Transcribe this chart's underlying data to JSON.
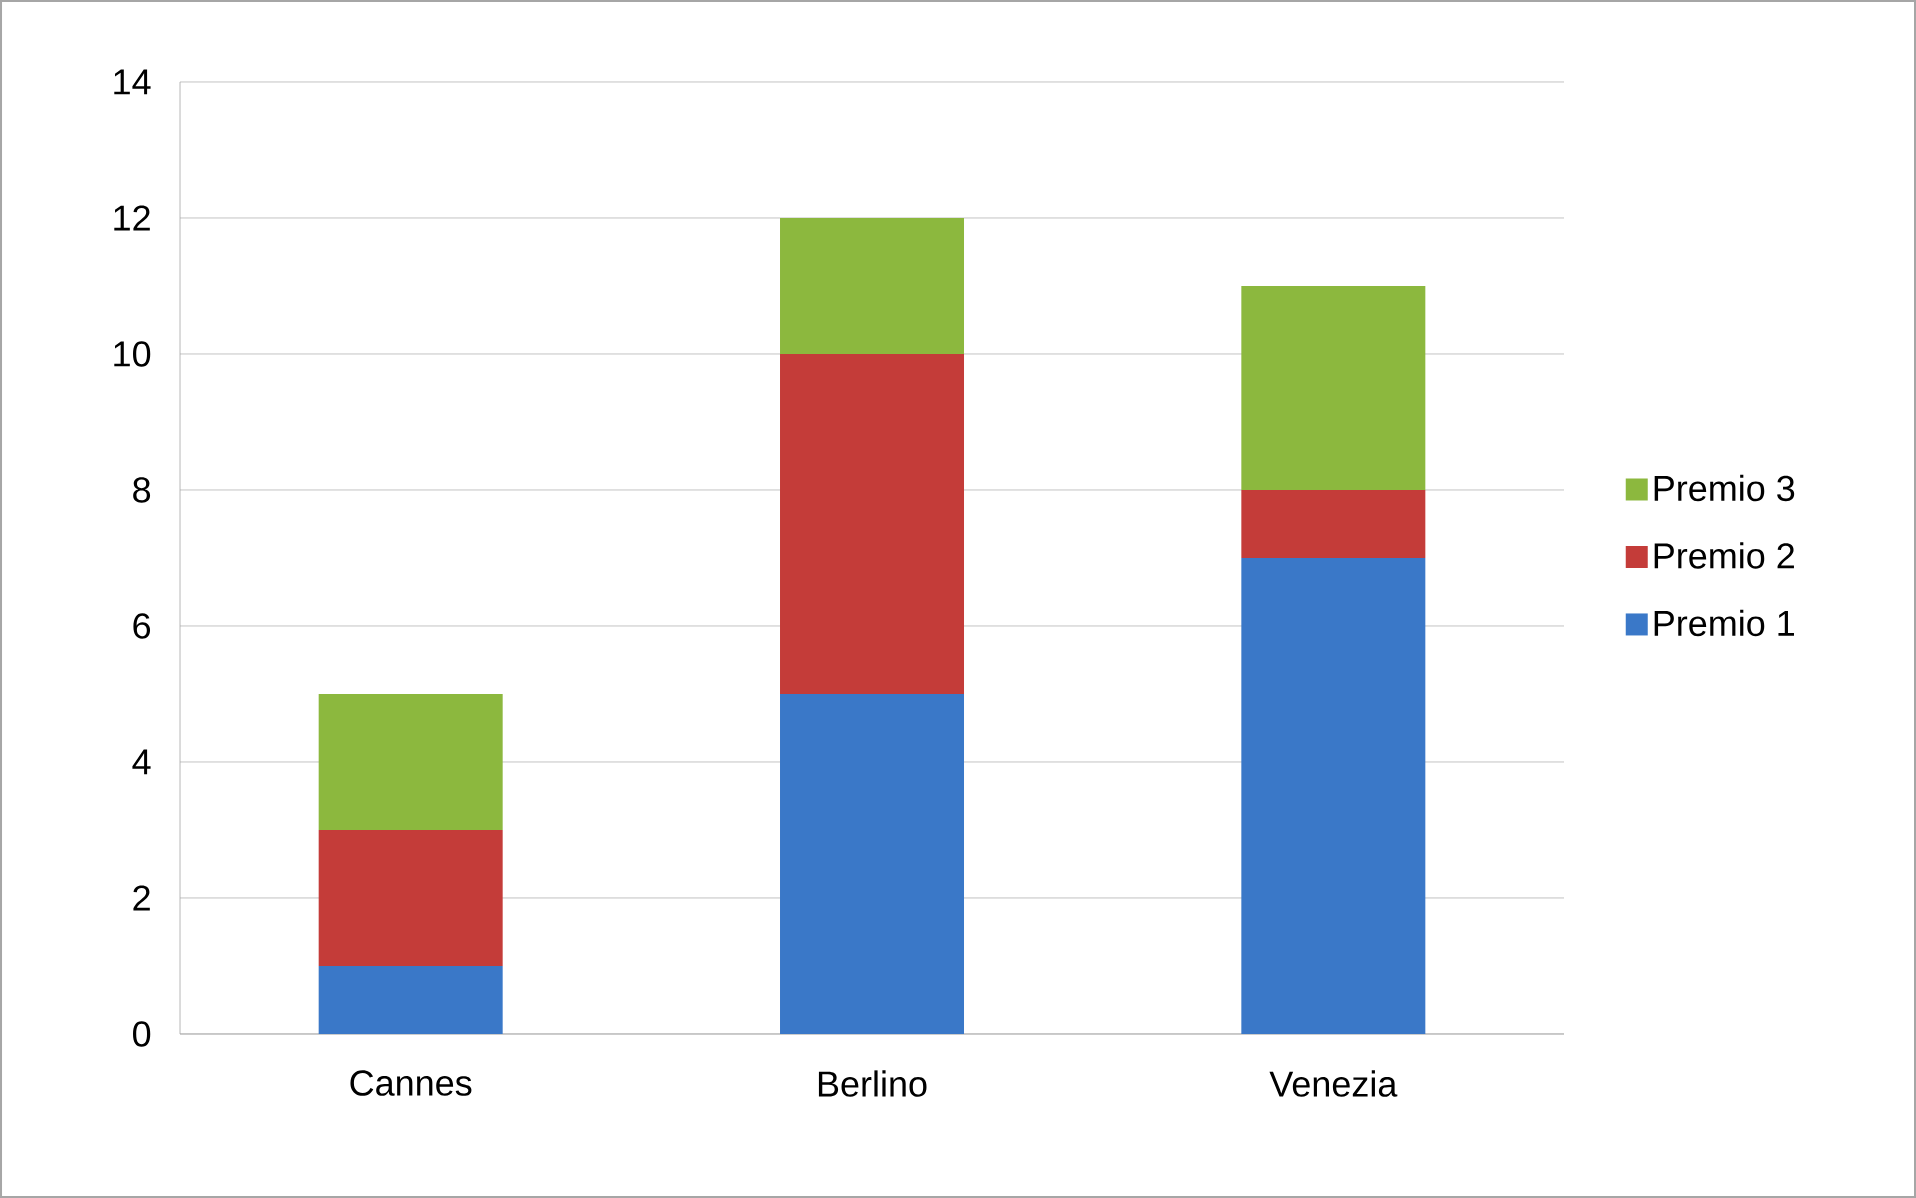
{
  "chart_data": {
    "type": "bar",
    "stacked": true,
    "categories": [
      "Cannes",
      "Berlino",
      "Venezia"
    ],
    "series": [
      {
        "name": "Premio 1",
        "color": "#3a78c8",
        "values": [
          1,
          5,
          7
        ]
      },
      {
        "name": "Premio 2",
        "color": "#c43c39",
        "values": [
          2,
          5,
          1
        ]
      },
      {
        "name": "Premio 3",
        "color": "#8cb83e",
        "values": [
          2,
          2,
          3
        ]
      }
    ],
    "ylim": [
      0,
      14
    ],
    "yticks": [
      0,
      2,
      4,
      6,
      8,
      10,
      12,
      14
    ],
    "grid": "y",
    "legend": "right"
  }
}
